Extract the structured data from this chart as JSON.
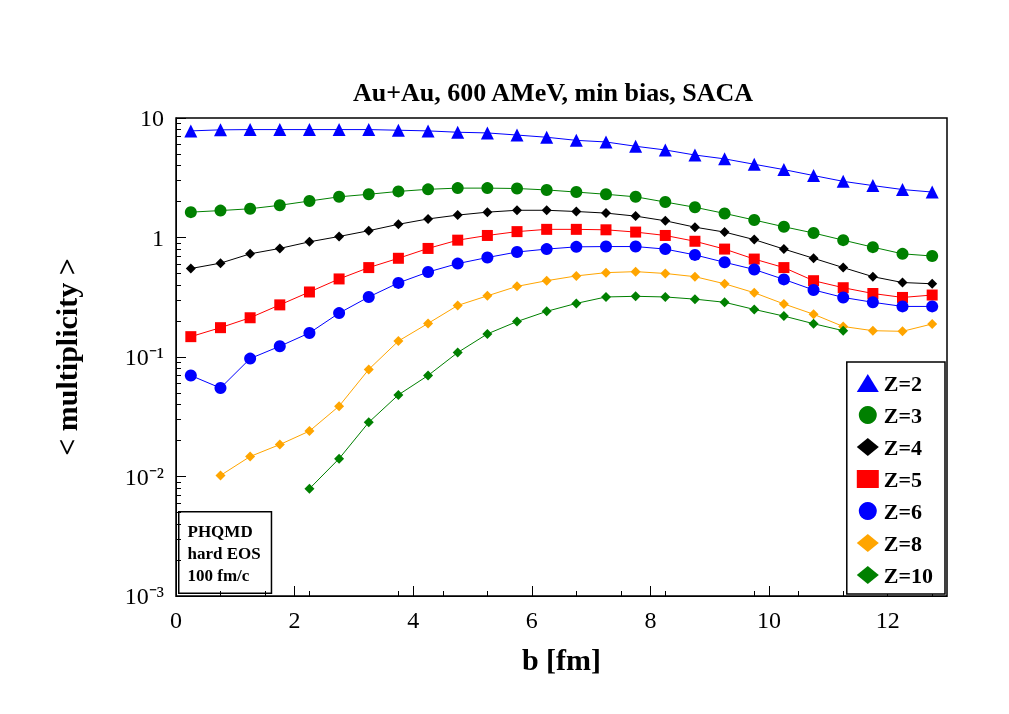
{
  "chart_data": {
    "type": "line",
    "title": "Au+Au, 600 AMeV, min bias, SACA",
    "xlabel": "b [fm]",
    "ylabel": "< multiplicity >",
    "x": [
      0.25,
      0.75,
      1.25,
      1.75,
      2.25,
      2.75,
      3.25,
      3.75,
      4.25,
      4.75,
      5.25,
      5.75,
      6.25,
      6.75,
      7.25,
      7.75,
      8.25,
      8.75,
      9.25,
      9.75,
      10.25,
      10.75,
      11.25,
      11.75,
      12.25,
      12.75
    ],
    "series": [
      {
        "name": "Z=2",
        "color": "#0000ff",
        "marker": "triangle",
        "values": [
          7.8,
          7.96,
          8.0,
          8.0,
          8.0,
          8.0,
          8.0,
          7.9,
          7.8,
          7.6,
          7.5,
          7.2,
          6.9,
          6.5,
          6.3,
          5.8,
          5.4,
          4.9,
          4.55,
          4.1,
          3.7,
          3.3,
          2.95,
          2.72,
          2.52,
          2.4
        ]
      },
      {
        "name": "Z=3",
        "color": "#008000",
        "marker": "circle",
        "values": [
          1.63,
          1.68,
          1.74,
          1.86,
          2.02,
          2.19,
          2.3,
          2.43,
          2.53,
          2.59,
          2.59,
          2.57,
          2.5,
          2.4,
          2.3,
          2.19,
          1.98,
          1.79,
          1.59,
          1.4,
          1.23,
          1.09,
          0.95,
          0.83,
          0.73,
          0.7
        ]
      },
      {
        "name": "Z=4",
        "color": "#000000",
        "marker": "diamond",
        "values": [
          0.55,
          0.61,
          0.73,
          0.81,
          0.92,
          1.02,
          1.14,
          1.29,
          1.43,
          1.54,
          1.63,
          1.69,
          1.69,
          1.65,
          1.6,
          1.51,
          1.38,
          1.22,
          1.11,
          0.96,
          0.8,
          0.67,
          0.56,
          0.47,
          0.42,
          0.41
        ]
      },
      {
        "name": "Z=5",
        "color": "#ff0000",
        "marker": "square",
        "values": [
          0.148,
          0.176,
          0.213,
          0.273,
          0.35,
          0.45,
          0.56,
          0.67,
          0.81,
          0.95,
          1.04,
          1.12,
          1.17,
          1.17,
          1.16,
          1.11,
          1.04,
          0.93,
          0.8,
          0.66,
          0.56,
          0.435,
          0.38,
          0.34,
          0.315,
          0.33
        ]
      },
      {
        "name": "Z=6",
        "color": "#0000ff",
        "marker": "circle",
        "values": [
          0.07,
          0.055,
          0.097,
          0.123,
          0.159,
          0.233,
          0.318,
          0.417,
          0.514,
          0.605,
          0.68,
          0.756,
          0.8,
          0.835,
          0.84,
          0.84,
          0.8,
          0.715,
          0.62,
          0.54,
          0.446,
          0.364,
          0.315,
          0.287,
          0.265,
          0.265
        ]
      },
      {
        "name": "Z=8",
        "color": "#ffa500",
        "marker": "diamond",
        "values": [
          null,
          0.0102,
          0.0147,
          0.0185,
          0.024,
          0.0388,
          0.0787,
          0.136,
          0.191,
          0.27,
          0.325,
          0.39,
          0.435,
          0.477,
          0.508,
          0.518,
          0.5,
          0.47,
          0.41,
          0.345,
          0.278,
          0.228,
          0.18,
          0.166,
          0.164,
          0.189
        ]
      },
      {
        "name": "Z=10",
        "color": "#008000",
        "marker": "diamond",
        "values": [
          null,
          null,
          null,
          null,
          0.0079,
          0.0141,
          0.0284,
          0.0482,
          0.07,
          0.109,
          0.156,
          0.198,
          0.241,
          0.281,
          0.318,
          0.322,
          0.318,
          0.305,
          0.287,
          0.25,
          0.22,
          0.19,
          0.166,
          null,
          null,
          null
        ]
      }
    ],
    "log": "y",
    "xlim": [
      0,
      13
    ],
    "xticks": [
      0,
      2,
      4,
      6,
      8,
      10,
      12
    ],
    "ylim": [
      0.001,
      10
    ],
    "yticks": [
      {
        "value": 0.001,
        "label": "10⁻³"
      },
      {
        "value": 0.01,
        "label": "10⁻²"
      },
      {
        "value": 0.1,
        "label": "10⁻¹"
      },
      1,
      10
    ],
    "grid": false,
    "legend": "bottom right",
    "line_style": "solid",
    "annotations": [
      "PHQMD\nhard EOS\n100 fm/c"
    ]
  }
}
